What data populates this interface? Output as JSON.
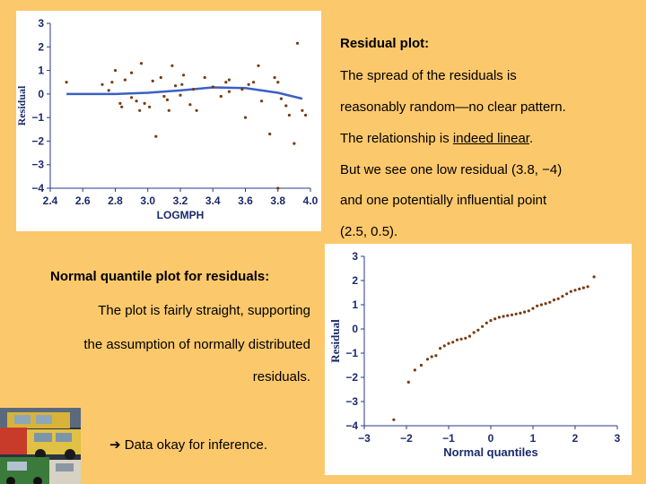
{
  "notes": {
    "residual_heading": "Residual plot:",
    "line1": "The spread of the residuals is",
    "line2": "reasonably random—no clear pattern.",
    "line3_pre": "The relationship is ",
    "line3_u": "indeed linear",
    "line3_post": ".",
    "line4": "But we see one low residual (3.8, −4)",
    "line5": "and one potentially influential point",
    "line6": "(2.5, 0.5).",
    "normal_heading": "Normal quantile plot for residuals:",
    "n1": "The plot is fairly straight, supporting",
    "n2": "the assumption of normally distributed",
    "n3": "residuals.",
    "conclusion_arrow": "➔",
    "conclusion": "Data okay for inference."
  },
  "colors": {
    "background": "#fcc86c",
    "points": "#7a3a10",
    "fit_line": "#3b5fc4",
    "axis": "#2a3a8a"
  },
  "chart_data": [
    {
      "type": "scatter",
      "xlabel": "LOGMPH",
      "ylabel": "Residual",
      "xlim": [
        2.4,
        4.0
      ],
      "ylim": [
        -4,
        3
      ],
      "xticks": [
        "2.4",
        "2.6",
        "2.8",
        "3.0",
        "3.2",
        "3.4",
        "3.6",
        "3.8",
        "4.0"
      ],
      "yticks": [
        "3",
        "2",
        "1",
        "0",
        "−1",
        "−2",
        "−3",
        "−4"
      ],
      "points": [
        [
          2.5,
          0.5
        ],
        [
          2.72,
          0.4
        ],
        [
          2.76,
          0.15
        ],
        [
          2.78,
          0.5
        ],
        [
          2.8,
          1.0
        ],
        [
          2.83,
          -0.4
        ],
        [
          2.84,
          -0.55
        ],
        [
          2.86,
          0.6
        ],
        [
          2.9,
          -0.15
        ],
        [
          2.93,
          -0.3
        ],
        [
          2.95,
          -0.7
        ],
        [
          2.96,
          1.3
        ],
        [
          2.98,
          -0.4
        ],
        [
          3.01,
          -0.55
        ],
        [
          3.03,
          0.55
        ],
        [
          3.08,
          0.7
        ],
        [
          3.1,
          -0.1
        ],
        [
          3.12,
          -0.25
        ],
        [
          3.13,
          -0.7
        ],
        [
          3.15,
          1.2
        ],
        [
          3.17,
          0.35
        ],
        [
          3.2,
          -0.05
        ],
        [
          3.21,
          0.4
        ],
        [
          3.22,
          0.8
        ],
        [
          3.26,
          -0.45
        ],
        [
          3.28,
          0.2
        ],
        [
          3.3,
          -0.7
        ],
        [
          3.35,
          0.7
        ],
        [
          3.4,
          0.3
        ],
        [
          3.45,
          -0.1
        ],
        [
          3.48,
          0.5
        ],
        [
          3.5,
          0.6
        ],
        [
          3.5,
          0.1
        ],
        [
          3.58,
          0.2
        ],
        [
          3.6,
          -1.0
        ],
        [
          3.62,
          0.4
        ],
        [
          3.65,
          0.5
        ],
        [
          3.68,
          1.2
        ],
        [
          3.7,
          -0.3
        ],
        [
          3.75,
          -1.7
        ],
        [
          3.78,
          0.7
        ],
        [
          3.8,
          0.5
        ],
        [
          3.82,
          -0.2
        ],
        [
          3.85,
          -0.5
        ],
        [
          3.87,
          -0.9
        ],
        [
          3.9,
          -2.1
        ],
        [
          3.92,
          2.15
        ],
        [
          3.95,
          -0.7
        ],
        [
          3.97,
          -0.9
        ],
        [
          2.9,
          0.9
        ],
        [
          3.05,
          -1.8
        ],
        [
          3.8,
          -4.0
        ]
      ],
      "fit_curve": [
        [
          2.5,
          0.0
        ],
        [
          2.8,
          0.0
        ],
        [
          3.0,
          0.05
        ],
        [
          3.2,
          0.15
        ],
        [
          3.4,
          0.28
        ],
        [
          3.6,
          0.25
        ],
        [
          3.8,
          0.05
        ],
        [
          3.95,
          -0.2
        ]
      ]
    },
    {
      "type": "scatter",
      "xlabel": "Normal quantiles",
      "ylabel": "Residual",
      "xlim": [
        -3,
        3
      ],
      "ylim": [
        -4,
        3
      ],
      "xticks": [
        "−3",
        "−2",
        "−1",
        "0",
        "1",
        "2",
        "3"
      ],
      "yticks": [
        "3",
        "2",
        "1",
        "0",
        "−1",
        "−2",
        "−3",
        "−4"
      ],
      "points": [
        [
          -2.3,
          -3.75
        ],
        [
          -1.95,
          -2.2
        ],
        [
          -1.8,
          -1.7
        ],
        [
          -1.65,
          -1.5
        ],
        [
          -1.5,
          -1.25
        ],
        [
          -1.4,
          -1.15
        ],
        [
          -1.3,
          -1.1
        ],
        [
          -1.2,
          -0.8
        ],
        [
          -1.1,
          -0.7
        ],
        [
          -1.0,
          -0.6
        ],
        [
          -0.9,
          -0.55
        ],
        [
          -0.8,
          -0.45
        ],
        [
          -0.7,
          -0.42
        ],
        [
          -0.6,
          -0.38
        ],
        [
          -0.5,
          -0.3
        ],
        [
          -0.4,
          -0.15
        ],
        [
          -0.3,
          -0.05
        ],
        [
          -0.2,
          0.1
        ],
        [
          -0.1,
          0.25
        ],
        [
          0.0,
          0.35
        ],
        [
          0.1,
          0.42
        ],
        [
          0.2,
          0.48
        ],
        [
          0.3,
          0.52
        ],
        [
          0.4,
          0.55
        ],
        [
          0.5,
          0.58
        ],
        [
          0.6,
          0.62
        ],
        [
          0.7,
          0.65
        ],
        [
          0.8,
          0.7
        ],
        [
          0.9,
          0.75
        ],
        [
          1.0,
          0.85
        ],
        [
          1.1,
          0.95
        ],
        [
          1.2,
          1.0
        ],
        [
          1.3,
          1.05
        ],
        [
          1.4,
          1.1
        ],
        [
          1.5,
          1.2
        ],
        [
          1.6,
          1.25
        ],
        [
          1.7,
          1.35
        ],
        [
          1.8,
          1.45
        ],
        [
          1.9,
          1.55
        ],
        [
          2.0,
          1.6
        ],
        [
          2.1,
          1.65
        ],
        [
          2.2,
          1.7
        ],
        [
          2.3,
          1.75
        ],
        [
          2.45,
          2.15
        ]
      ]
    }
  ]
}
